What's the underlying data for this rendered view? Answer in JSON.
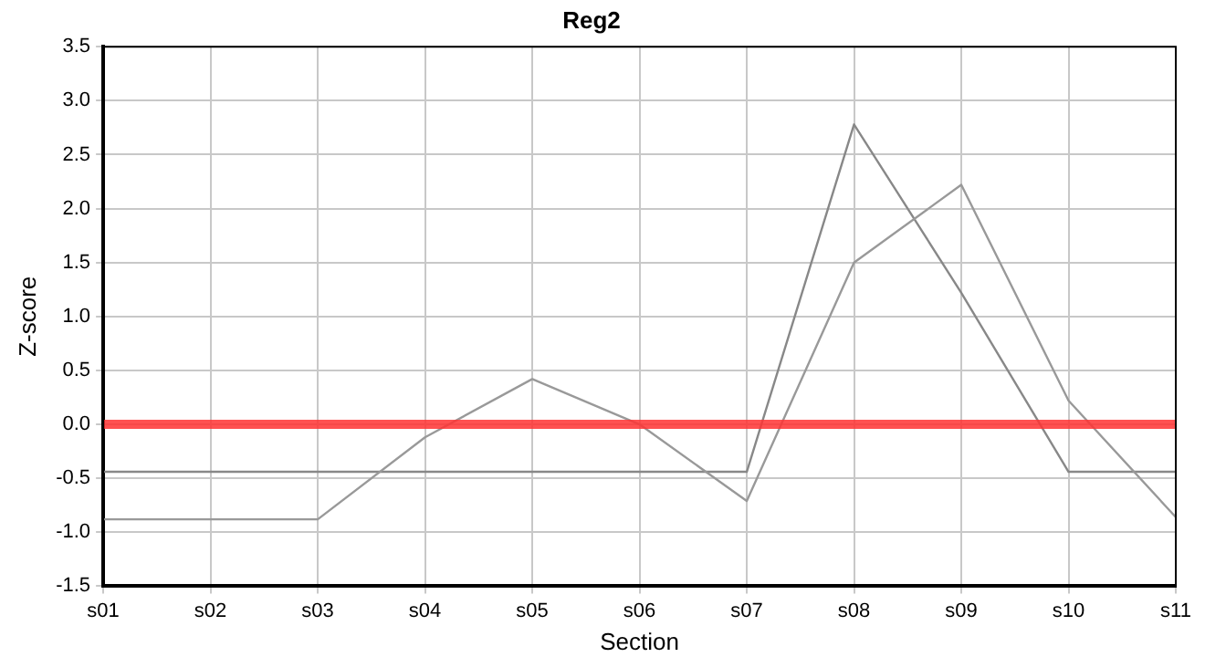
{
  "chart_data": {
    "type": "line",
    "title": "Reg2",
    "xlabel": "Section",
    "ylabel": "Z-score",
    "categories": [
      "s01",
      "s02",
      "s03",
      "s04",
      "s05",
      "s06",
      "s07",
      "s08",
      "s09",
      "s10",
      "s11"
    ],
    "series": [
      {
        "color": "#999999",
        "values": [
          -0.88,
          -0.88,
          -0.88,
          -0.12,
          0.42,
          0.0,
          -0.71,
          1.5,
          2.22,
          0.22,
          -0.86
        ]
      },
      {
        "color": "#888888",
        "values": [
          -0.44,
          -0.44,
          -0.44,
          -0.44,
          -0.44,
          -0.44,
          -0.44,
          2.78,
          1.22,
          -0.44,
          -0.44
        ]
      }
    ],
    "ylim": [
      -1.5,
      3.5
    ],
    "yticks": [
      -1.5,
      {
        "value": -1,
        "label": "-1.0"
      },
      -0.5,
      {
        "value": 0,
        "label": "0.0"
      },
      0.5,
      {
        "value": 1,
        "label": "1.0"
      },
      1.5,
      {
        "value": 2,
        "label": "2.0"
      },
      2.5,
      {
        "value": 3,
        "label": "3.0"
      },
      3.5
    ],
    "ref_lines": [
      {
        "axis": "y",
        "value": 0,
        "color": "#ff3333"
      }
    ],
    "grid": true,
    "legend": false,
    "marker": "none",
    "line_style": "solid"
  }
}
